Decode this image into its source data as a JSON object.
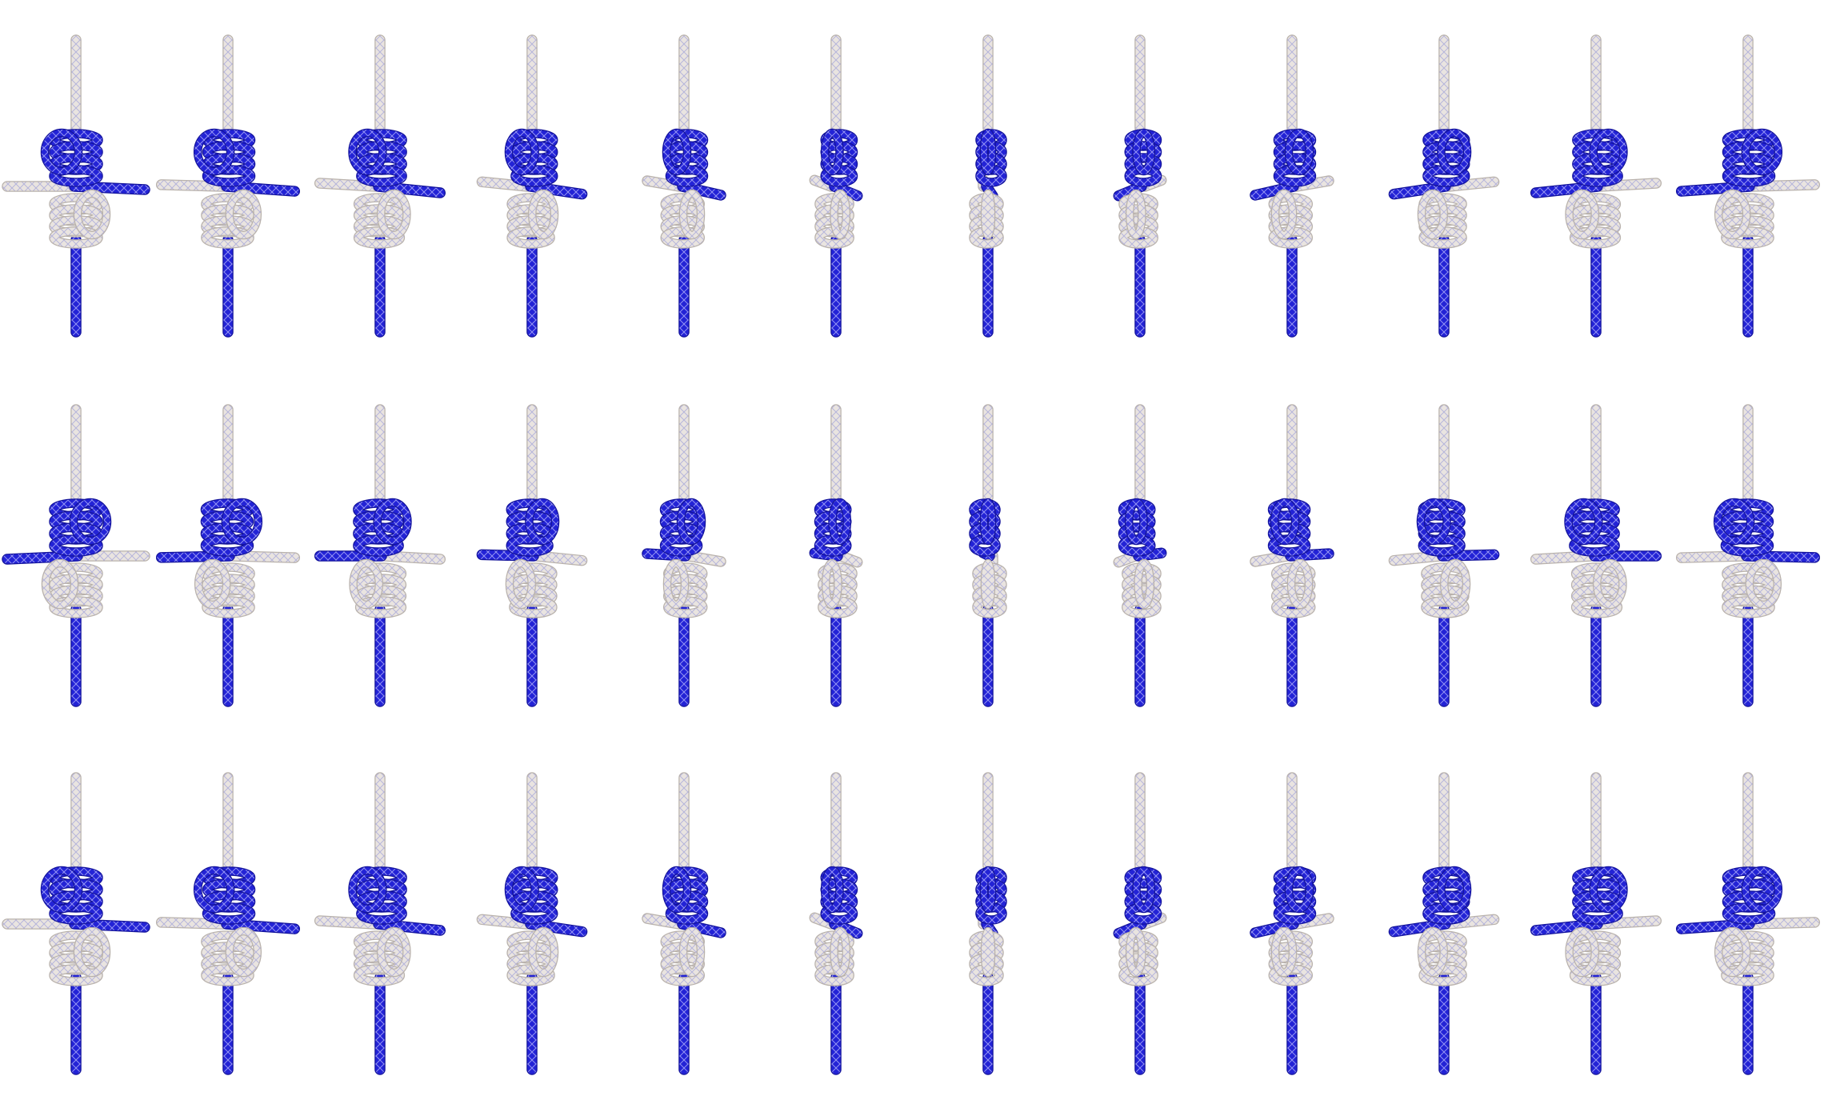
{
  "image": {
    "subject": "knot-rotation-render-sequence",
    "grid": {
      "rows": 3,
      "cols": 12
    },
    "colors": {
      "background": "#ffffff",
      "blue_rope": "#2323d6",
      "blue_rope_dark": "#13139a",
      "blue_rope_highlight": "#7d7dff",
      "white_rope": "#e9e4e0",
      "white_rope_dark": "#b9b2ac",
      "white_rope_pattern": "#9a9ad8"
    },
    "frame_angles": [
      [
        0,
        15,
        30,
        45,
        60,
        75,
        90,
        105,
        120,
        135,
        150,
        165
      ],
      [
        180,
        195,
        210,
        225,
        240,
        255,
        270,
        285,
        300,
        315,
        330,
        345
      ],
      [
        360,
        375,
        390,
        405,
        420,
        435,
        450,
        465,
        480,
        495,
        510,
        525
      ]
    ]
  }
}
